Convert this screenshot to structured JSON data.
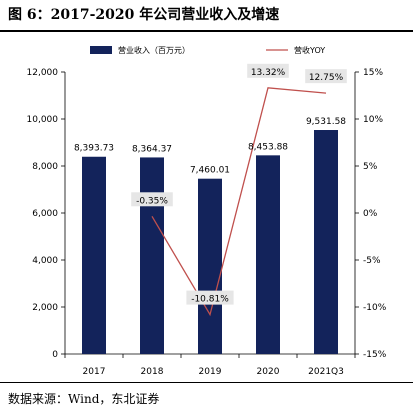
{
  "title": "图 6：2017-2020 年公司营业收入及增速",
  "source": "数据来源：Wind，东北证券",
  "colors": {
    "bar": "#13235b",
    "line": "#c0504d",
    "label_box": "#e6e6e6"
  },
  "chart_data": {
    "type": "bar+line",
    "categories": [
      "2017",
      "2018",
      "2019",
      "2020",
      "2021Q3"
    ],
    "series": [
      {
        "name": "营业收入（百万元）",
        "type": "bar",
        "axis": "left",
        "values": [
          8393.73,
          8364.37,
          7460.01,
          8453.88,
          9531.58
        ],
        "labels": [
          "8,393.73",
          "8,364.37",
          "7,460.01",
          "8,453.88",
          "9,531.58"
        ]
      },
      {
        "name": "营收YOY",
        "type": "line",
        "axis": "right",
        "values": [
          null,
          -0.35,
          -10.81,
          13.32,
          12.75
        ],
        "labels": [
          "",
          "-0.35%",
          "-10.81%",
          "13.32%",
          "12.75%"
        ]
      }
    ],
    "y_left": {
      "min": 0,
      "max": 12000,
      "ticks": [
        0,
        2000,
        4000,
        6000,
        8000,
        10000,
        12000
      ],
      "tick_labels": [
        "0",
        "2,000",
        "4,000",
        "6,000",
        "8,000",
        "10,000",
        "12,000"
      ]
    },
    "y_right": {
      "min": -15,
      "max": 15,
      "ticks": [
        -15,
        -10,
        -5,
        0,
        5,
        10,
        15
      ],
      "tick_labels": [
        "-15%",
        "-10%",
        "-5%",
        "0%",
        "5%",
        "10%",
        "15%"
      ]
    },
    "legend_placement": "top",
    "grid": false
  }
}
